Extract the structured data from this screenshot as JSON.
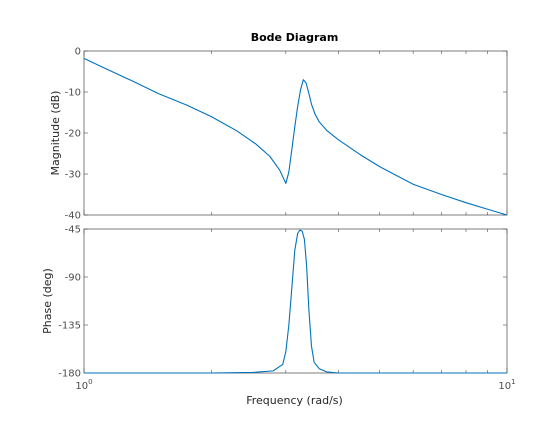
{
  "chart_data": {
    "type": "line",
    "title": "Bode Diagram",
    "xlabel": "Frequency  (rad/s)",
    "x_scale": "log",
    "xlim": [
      1,
      10
    ],
    "x_ticks": [
      {
        "value": 1,
        "base": "10",
        "exp": "0"
      },
      {
        "value": 10,
        "base": "10",
        "exp": "1"
      }
    ],
    "line_color": "#0072BD",
    "grid": false,
    "panels": [
      {
        "name": "magnitude",
        "ylabel": "Magnitude (dB)",
        "ylim": [
          -40,
          0
        ],
        "yticks": [
          0,
          -10,
          -20,
          -30,
          -40
        ],
        "ytick_labels": [
          "0",
          "-10",
          "-20",
          "-30",
          "-40"
        ],
        "series": [
          {
            "x": [
              1.0,
              1.12,
              1.3,
              1.5,
              1.75,
              2.0,
              2.3,
              2.55,
              2.75,
              2.9,
              3.0,
              3.05,
              3.1,
              3.15,
              3.2,
              3.25,
              3.3,
              3.35,
              3.4,
              3.45,
              3.52,
              3.6,
              3.75,
              4.0,
              4.5,
              5.0,
              6.0,
              7.0,
              8.0,
              9.0,
              10.0
            ],
            "y": [
              -1.8,
              -4.2,
              -7.3,
              -10.4,
              -13.2,
              -16.0,
              -19.5,
              -22.7,
              -25.7,
              -29.0,
              -32.3,
              -29.5,
              -24.0,
              -18.5,
              -13.5,
              -9.5,
              -7.0,
              -7.8,
              -10.3,
              -13.0,
              -15.5,
              -17.3,
              -19.4,
              -21.7,
              -25.3,
              -28.2,
              -32.5,
              -35.0,
              -37.0,
              -38.6,
              -40.0
            ]
          }
        ]
      },
      {
        "name": "phase",
        "ylabel": "Phase (deg)",
        "ylim": [
          -180,
          -45
        ],
        "yticks": [
          -45,
          -90,
          -135,
          -180
        ],
        "ytick_labels": [
          "-45",
          "-90",
          "-135",
          "-180"
        ],
        "series": [
          {
            "x": [
              1.0,
              2.0,
              2.5,
              2.8,
              2.95,
              3.0,
              3.05,
              3.1,
              3.15,
              3.2,
              3.24,
              3.28,
              3.32,
              3.36,
              3.4,
              3.45,
              3.5,
              3.6,
              3.75,
              4.0,
              5.0,
              7.0,
              10.0
            ],
            "y": [
              -180,
              -180,
              -179.5,
              -178,
              -172,
              -160,
              -135,
              -100,
              -65,
              -49,
              -46,
              -47,
              -55,
              -80,
              -120,
              -155,
              -170,
              -176,
              -179,
              -180,
              -180,
              -180,
              -180
            ]
          }
        ]
      }
    ]
  }
}
